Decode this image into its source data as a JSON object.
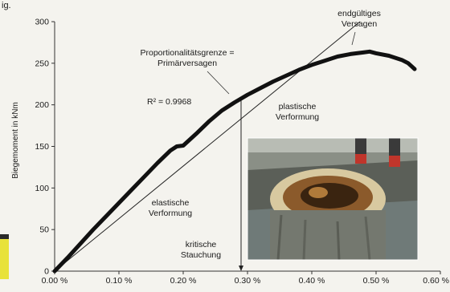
{
  "chart_data": {
    "type": "line",
    "title": "",
    "cropped_header_text": "ig.",
    "ylabel": "Biegemoment in kNm",
    "xlabel": "",
    "xlim": [
      0,
      0.6
    ],
    "ylim": [
      0,
      300
    ],
    "x_ticks": [
      0,
      0.1,
      0.2,
      0.3,
      0.4,
      0.5,
      0.6
    ],
    "x_tick_labels": [
      "0.00 %",
      "0.10 %",
      "0.20 %",
      "0.30 %",
      "0.40 %",
      "0.50 %",
      "0.60 %"
    ],
    "y_ticks": [
      0,
      50,
      100,
      150,
      200,
      250,
      300
    ],
    "y_tick_labels": [
      "0",
      "50",
      "100",
      "150",
      "200",
      "250",
      "300"
    ],
    "grid": false,
    "series": [
      {
        "points": [
          [
            0.0,
            0
          ],
          [
            0.02,
            16
          ],
          [
            0.04,
            33
          ],
          [
            0.06,
            50
          ],
          [
            0.08,
            66
          ],
          [
            0.1,
            82
          ],
          [
            0.12,
            98
          ],
          [
            0.14,
            114
          ],
          [
            0.16,
            130
          ],
          [
            0.18,
            145
          ],
          [
            0.19,
            150
          ],
          [
            0.2,
            151
          ],
          [
            0.22,
            165
          ],
          [
            0.24,
            180
          ],
          [
            0.26,
            193
          ],
          [
            0.28,
            203
          ],
          [
            0.3,
            212
          ],
          [
            0.32,
            220
          ],
          [
            0.34,
            228
          ],
          [
            0.36,
            235
          ],
          [
            0.38,
            242
          ],
          [
            0.4,
            248
          ],
          [
            0.42,
            253
          ],
          [
            0.44,
            258
          ],
          [
            0.46,
            261
          ],
          [
            0.48,
            263
          ],
          [
            0.49,
            264
          ],
          [
            0.5,
            262
          ],
          [
            0.52,
            259
          ],
          [
            0.54,
            254
          ],
          [
            0.55,
            250
          ],
          [
            0.56,
            243
          ]
        ]
      }
    ],
    "trend_line": {
      "points": [
        [
          0.0,
          0
        ],
        [
          0.475,
          300
        ]
      ]
    },
    "critical_marker_x": 0.29,
    "annotations": {
      "final_failure": [
        "endgültiges",
        "Versagen"
      ],
      "proportional_limit": [
        "Proportionalitätsgrenze =",
        "Primärversagen"
      ],
      "r_squared": "R² = 0.9968",
      "plastic": [
        "plastische",
        "Verformung"
      ],
      "elastic": [
        "elastische",
        "Verformung"
      ],
      "critical": [
        "kritische",
        "Stauchung"
      ]
    },
    "colors": {
      "series": "#111111",
      "trend": "#222222",
      "axis": "#333333",
      "accent_bar": "#e8e23a"
    }
  }
}
